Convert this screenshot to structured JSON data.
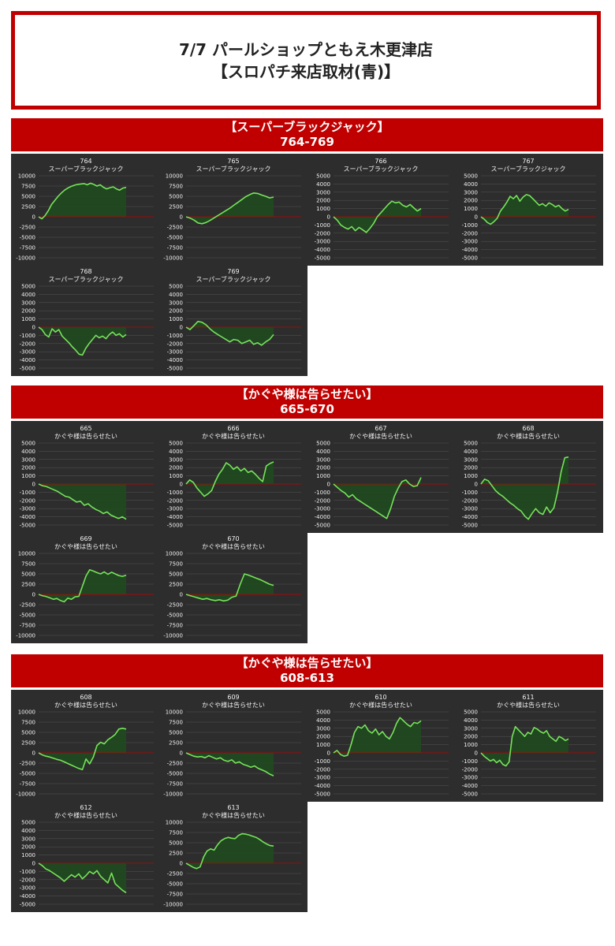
{
  "title": {
    "line1": "7/7 パールショップともえ木更津店",
    "line2": "【スロパチ来店取材(青)】"
  },
  "colors": {
    "accent": "#c00000",
    "panel": "#2d2d2d",
    "line": "#76e35a",
    "fill": "#1f4a1f",
    "zero": "#c00000",
    "grid": "#555555",
    "text": "#f2f2f2"
  },
  "sections": [
    {
      "title": "【スーパーブラックジャック】",
      "range": "764-769"
    },
    {
      "title": "【かぐや様は告らせたい】",
      "range": "665-670"
    },
    {
      "title": "【かぐや様は告らせたい】",
      "range": "608-613"
    }
  ],
  "chart_data": [
    {
      "type": "area",
      "number": "764",
      "machine": "スーパーブラックジャック",
      "ylim": [
        -10000,
        10000
      ],
      "yticks": [
        10000,
        7500,
        5000,
        2500,
        0,
        -2500,
        -5000,
        -7500,
        -10000
      ],
      "values": [
        0,
        -500,
        300,
        1500,
        3000,
        4000,
        5000,
        5800,
        6500,
        7000,
        7400,
        7700,
        7900,
        8000,
        8100,
        7800,
        8200,
        7900,
        7500,
        7800,
        7200,
        6800,
        7100,
        7300,
        6800,
        6500,
        7000,
        7200
      ]
    },
    {
      "type": "area",
      "number": "765",
      "machine": "スーパーブラックジャック",
      "ylim": [
        -10000,
        10000
      ],
      "yticks": [
        10000,
        7500,
        5000,
        2500,
        0,
        -2500,
        -5000,
        -7500,
        -10000
      ],
      "values": [
        0,
        -300,
        -800,
        -1500,
        -1700,
        -1400,
        -900,
        -300,
        300,
        900,
        1500,
        2100,
        2800,
        3500,
        4200,
        4900,
        5400,
        5800,
        5700,
        5300,
        5000,
        4600,
        4800
      ]
    },
    {
      "type": "area",
      "number": "766",
      "machine": "スーパーブラックジャック",
      "ylim": [
        -5000,
        5000
      ],
      "yticks": [
        5000,
        4000,
        3000,
        2000,
        1000,
        0,
        -1000,
        -2000,
        -3000,
        -4000,
        -5000
      ],
      "values": [
        0,
        -400,
        -1000,
        -1300,
        -1500,
        -1200,
        -1700,
        -1300,
        -1600,
        -1900,
        -1400,
        -800,
        0,
        500,
        1000,
        1500,
        1900,
        1700,
        1800,
        1400,
        1200,
        1500,
        1100,
        700,
        1000
      ]
    },
    {
      "type": "area",
      "number": "767",
      "machine": "スーパーブラックジャック",
      "ylim": [
        -5000,
        5000
      ],
      "yticks": [
        5000,
        4000,
        3000,
        2000,
        1000,
        0,
        -1000,
        -2000,
        -3000,
        -4000,
        -5000
      ],
      "values": [
        0,
        -300,
        -700,
        -900,
        -600,
        -200,
        700,
        1200,
        1800,
        2500,
        2200,
        2600,
        1900,
        2400,
        2700,
        2600,
        2200,
        1800,
        1400,
        1600,
        1300,
        1700,
        1500,
        1200,
        1400,
        1000,
        700,
        900
      ]
    },
    {
      "type": "area",
      "number": "768",
      "machine": "スーパーブラックジャック",
      "ylim": [
        -5000,
        5000
      ],
      "yticks": [
        5000,
        4000,
        3000,
        2000,
        1000,
        0,
        -1000,
        -2000,
        -3000,
        -4000,
        -5000
      ],
      "values": [
        0,
        -300,
        -900,
        -1200,
        -200,
        -600,
        -300,
        -1100,
        -1500,
        -1900,
        -2400,
        -2800,
        -3300,
        -3400,
        -2600,
        -2000,
        -1500,
        -1000,
        -1300,
        -1100,
        -1400,
        -900,
        -600,
        -1000,
        -800,
        -1200,
        -900
      ]
    },
    {
      "type": "area",
      "number": "769",
      "machine": "スーパーブラックジャック",
      "ylim": [
        -5000,
        5000
      ],
      "yticks": [
        5000,
        4000,
        3000,
        2000,
        1000,
        0,
        -1000,
        -2000,
        -3000,
        -4000,
        -5000
      ],
      "values": [
        0,
        -300,
        200,
        700,
        600,
        300,
        -200,
        -600,
        -900,
        -1200,
        -1500,
        -1800,
        -1500,
        -1600,
        -2000,
        -1800,
        -1600,
        -2100,
        -1900,
        -2200,
        -1800,
        -1500,
        -900
      ]
    },
    {
      "type": "area",
      "number": "665",
      "machine": "かぐや様は告らせたい",
      "ylim": [
        -5000,
        5000
      ],
      "yticks": [
        5000,
        4000,
        3000,
        2000,
        1000,
        0,
        -1000,
        -2000,
        -3000,
        -4000,
        -5000
      ],
      "values": [
        0,
        -200,
        -300,
        -500,
        -700,
        -900,
        -1200,
        -1500,
        -1600,
        -1900,
        -2200,
        -2100,
        -2600,
        -2400,
        -2800,
        -3100,
        -3300,
        -3600,
        -3400,
        -3800,
        -4000,
        -4200,
        -4000,
        -4300
      ]
    },
    {
      "type": "area",
      "number": "666",
      "machine": "かぐや様は告らせたい",
      "ylim": [
        -5000,
        5000
      ],
      "yticks": [
        5000,
        4000,
        3000,
        2000,
        1000,
        0,
        -1000,
        -2000,
        -3000,
        -4000,
        -5000
      ],
      "values": [
        0,
        500,
        200,
        -500,
        -1000,
        -1500,
        -1200,
        -800,
        300,
        1200,
        1800,
        2600,
        2300,
        1800,
        2100,
        1600,
        1900,
        1400,
        1600,
        1200,
        700,
        300,
        2200,
        2500,
        2700
      ]
    },
    {
      "type": "area",
      "number": "667",
      "machine": "かぐや様は告らせたい",
      "ylim": [
        -5000,
        5000
      ],
      "yticks": [
        5000,
        4000,
        3000,
        2000,
        1000,
        0,
        -1000,
        -2000,
        -3000,
        -4000,
        -5000
      ],
      "values": [
        0,
        -400,
        -800,
        -1100,
        -1600,
        -1300,
        -1800,
        -2100,
        -2400,
        -2700,
        -3000,
        -3300,
        -3600,
        -3900,
        -4200,
        -3000,
        -1500,
        -500,
        300,
        500,
        0,
        -300,
        -200,
        800
      ]
    },
    {
      "type": "area",
      "number": "668",
      "machine": "かぐや様は告らせたい",
      "ylim": [
        -5000,
        5000
      ],
      "yticks": [
        5000,
        4000,
        3000,
        2000,
        1000,
        0,
        -1000,
        -2000,
        -3000,
        -4000,
        -5000
      ],
      "values": [
        0,
        600,
        400,
        -200,
        -800,
        -1200,
        -1500,
        -1900,
        -2300,
        -2600,
        -3000,
        -3300,
        -3900,
        -4300,
        -3600,
        -3000,
        -3500,
        -3700,
        -2800,
        -3500,
        -2900,
        -1000,
        1500,
        3200,
        3300
      ]
    },
    {
      "type": "area",
      "number": "669",
      "machine": "かぐや様は告らせたい",
      "ylim": [
        -10000,
        10000
      ],
      "yticks": [
        10000,
        7500,
        5000,
        2500,
        0,
        -2500,
        -5000,
        -7500,
        -10000
      ],
      "values": [
        0,
        -300,
        -500,
        -800,
        -1200,
        -1000,
        -1500,
        -1800,
        -900,
        -1200,
        -600,
        -500,
        2000,
        4500,
        6000,
        5700,
        5300,
        5000,
        5500,
        4900,
        5400,
        5000,
        4600,
        4400,
        4700
      ]
    },
    {
      "type": "area",
      "number": "670",
      "machine": "かぐや様は告らせたい",
      "ylim": [
        -10000,
        10000
      ],
      "yticks": [
        10000,
        7500,
        5000,
        2500,
        0,
        -2500,
        -5000,
        -7500,
        -10000
      ],
      "values": [
        0,
        -300,
        -600,
        -900,
        -1200,
        -1000,
        -1300,
        -1500,
        -1300,
        -1600,
        -1400,
        -700,
        -400,
        2500,
        5000,
        4700,
        4300,
        3900,
        3500,
        3000,
        2500,
        2200
      ]
    },
    {
      "type": "area",
      "number": "608",
      "machine": "かぐや様は告らせたい",
      "ylim": [
        -10000,
        10000
      ],
      "yticks": [
        10000,
        7500,
        5000,
        2500,
        0,
        -2500,
        -5000,
        -7500,
        -10000
      ],
      "values": [
        0,
        -500,
        -800,
        -1000,
        -1300,
        -1600,
        -1800,
        -2200,
        -2600,
        -3000,
        -3400,
        -3800,
        -4100,
        -1500,
        -2700,
        -1000,
        1800,
        2600,
        2200,
        3200,
        3800,
        4500,
        5800,
        6000,
        5800
      ]
    },
    {
      "type": "area",
      "number": "609",
      "machine": "かぐや様は告らせたい",
      "ylim": [
        -10000,
        10000
      ],
      "yticks": [
        10000,
        7500,
        5000,
        2500,
        0,
        -2500,
        -5000,
        -7500,
        -10000
      ],
      "values": [
        0,
        -400,
        -800,
        -1000,
        -900,
        -1200,
        -700,
        -1100,
        -1500,
        -1200,
        -1800,
        -2100,
        -1700,
        -2500,
        -2200,
        -2800,
        -3100,
        -3500,
        -3200,
        -3800,
        -4200,
        -4600,
        -5200,
        -5600
      ]
    },
    {
      "type": "area",
      "number": "610",
      "machine": "かぐや様は告らせたい",
      "ylim": [
        -5000,
        5000
      ],
      "yticks": [
        5000,
        4000,
        3000,
        2000,
        1000,
        0,
        -1000,
        -2000,
        -3000,
        -4000,
        -5000
      ],
      "values": [
        0,
        300,
        -200,
        -400,
        -300,
        1000,
        2500,
        3200,
        3000,
        3400,
        2700,
        2400,
        2900,
        2200,
        2600,
        2000,
        1700,
        2500,
        3600,
        4300,
        3900,
        3500,
        3200,
        3700,
        3600,
        3900
      ]
    },
    {
      "type": "area",
      "number": "611",
      "machine": "かぐや様は告らせたい",
      "ylim": [
        -5000,
        5000
      ],
      "yticks": [
        5000,
        4000,
        3000,
        2000,
        1000,
        0,
        -1000,
        -2000,
        -3000,
        -4000,
        -5000
      ],
      "values": [
        0,
        -400,
        -700,
        -1000,
        -800,
        -1200,
        -900,
        -1400,
        -1600,
        -1100,
        2000,
        3200,
        2800,
        2400,
        2000,
        2500,
        2300,
        3100,
        2900,
        2600,
        2400,
        2700,
        2000,
        1700,
        1400,
        2000,
        1800,
        1500,
        1700
      ]
    },
    {
      "type": "area",
      "number": "612",
      "machine": "かぐや様は告らせたい",
      "ylim": [
        -5000,
        5000
      ],
      "yticks": [
        5000,
        4000,
        3000,
        2000,
        1000,
        0,
        -1000,
        -2000,
        -3000,
        -4000,
        -5000
      ],
      "values": [
        0,
        -300,
        -700,
        -900,
        -1200,
        -1500,
        -1800,
        -2200,
        -1800,
        -1400,
        -1700,
        -1300,
        -1900,
        -1500,
        -1000,
        -1300,
        -900,
        -1600,
        -2000,
        -2400,
        -1200,
        -2500,
        -2900,
        -3300,
        -3600
      ]
    },
    {
      "type": "area",
      "number": "613",
      "machine": "かぐや様は告らせたい",
      "ylim": [
        -10000,
        10000
      ],
      "yticks": [
        10000,
        7500,
        5000,
        2500,
        0,
        -2500,
        -5000,
        -7500,
        -10000
      ],
      "values": [
        0,
        -500,
        -1000,
        -1300,
        -900,
        1500,
        3000,
        3500,
        3200,
        4500,
        5500,
        6000,
        6300,
        6100,
        6000,
        6800,
        7200,
        7100,
        6900,
        6600,
        6300,
        5800,
        5200,
        4700,
        4300,
        4200
      ]
    }
  ]
}
